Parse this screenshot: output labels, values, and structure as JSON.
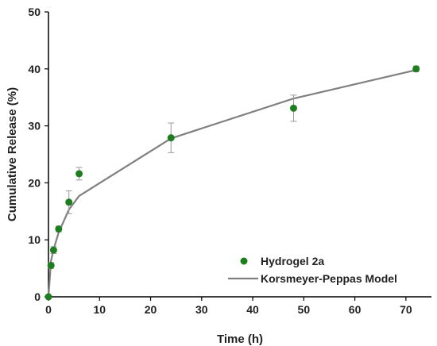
{
  "chart_data": {
    "type": "scatter",
    "xlabel": "Time (h)",
    "ylabel": "Cumulative Release (%)",
    "xlim": [
      0,
      75
    ],
    "ylim": [
      0,
      50
    ],
    "xticks": [
      0,
      10,
      20,
      30,
      40,
      50,
      60,
      70
    ],
    "yticks": [
      0,
      10,
      20,
      30,
      40,
      50
    ],
    "grid": false,
    "legend_position": "bottom-right",
    "series": [
      {
        "name": "Hydrogel 2a",
        "kind": "scatter",
        "color": "#1e7d1e",
        "x": [
          0,
          0.5,
          1,
          2,
          4,
          6,
          24,
          48,
          72
        ],
        "y": [
          0,
          5.5,
          8.2,
          11.9,
          16.6,
          21.6,
          27.9,
          33.1,
          40.0
        ],
        "error": [
          0,
          0.5,
          0.6,
          0.5,
          2.0,
          1.1,
          2.6,
          2.3,
          0.5
        ]
      },
      {
        "name": "Korsmeyer-Peppas Model",
        "kind": "line",
        "color": "#808080",
        "x": [
          0,
          0.5,
          1,
          2,
          4,
          6,
          24,
          48,
          72
        ],
        "y": [
          0,
          6.3,
          8.3,
          11.3,
          15.3,
          17.7,
          27.8,
          34.8,
          39.8
        ]
      }
    ],
    "legend_labels": [
      "Hydrogel 2a",
      "Korsmeyer-Peppas Model"
    ]
  }
}
